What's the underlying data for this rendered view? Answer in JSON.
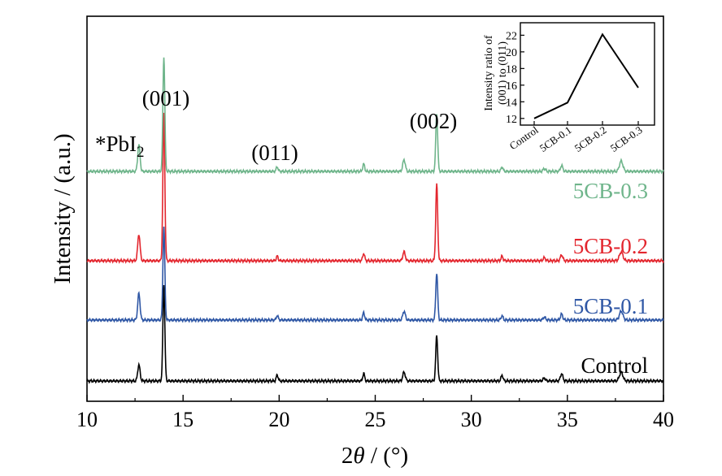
{
  "chart_data": [
    {
      "type": "line",
      "title": "",
      "xlabel": "2θ / (°)",
      "xlabel_parts": {
        "lead": "2",
        "theta": "θ",
        "unit": " / (°)"
      },
      "ylabel": "Intensity / (a.u.)",
      "xlim": [
        10,
        40
      ],
      "x_ticks": [
        10,
        15,
        20,
        25,
        30,
        35,
        40
      ],
      "y_ticks_shown": false,
      "grid": false,
      "peak_positions": [
        12.7,
        14.0,
        19.9,
        24.4,
        26.5,
        28.2,
        31.6,
        33.8,
        34.7,
        37.8
      ],
      "series": [
        {
          "name": "Control",
          "color": "#000000",
          "peak_intensities": [
            0.11,
            0.65,
            0.04,
            0.05,
            0.06,
            0.31,
            0.04,
            0.02,
            0.05,
            0.06
          ]
        },
        {
          "name": "5CB-0.1",
          "color": "#2f57a5",
          "peak_intensities": [
            0.18,
            0.63,
            0.03,
            0.05,
            0.06,
            0.32,
            0.03,
            0.02,
            0.04,
            0.06
          ]
        },
        {
          "name": "5CB-0.2",
          "color": "#e3262e",
          "peak_intensities": [
            0.18,
            1.0,
            0.03,
            0.05,
            0.06,
            0.52,
            0.03,
            0.02,
            0.04,
            0.06
          ]
        },
        {
          "name": "5CB-0.3",
          "color": "#6fb58b",
          "peak_intensities": [
            0.18,
            0.78,
            0.03,
            0.05,
            0.08,
            0.39,
            0.03,
            0.02,
            0.04,
            0.07
          ]
        }
      ],
      "annotations": {
        "pbi2": {
          "star": "*",
          "text": "PbI",
          "subscript": "2",
          "x": 12.7
        },
        "p001": {
          "text": "(001)",
          "x": 14.0
        },
        "p011": {
          "text": "(011)",
          "x": 19.9
        },
        "p002": {
          "text": "(002)",
          "x": 28.2
        }
      }
    },
    {
      "type": "line",
      "title": "",
      "xlabel": "",
      "ylabel_lines": [
        "Intensity ratio of",
        "(001) to (011)"
      ],
      "categories": [
        "Control",
        "5CB-0.1",
        "5CB-0.2",
        "5CB-0.3"
      ],
      "values": [
        12.0,
        13.9,
        22.1,
        15.7
      ],
      "ylim": [
        11.2,
        23.5
      ],
      "y_ticks": [
        12,
        14,
        16,
        18,
        20,
        22
      ],
      "color": "#000000"
    }
  ]
}
